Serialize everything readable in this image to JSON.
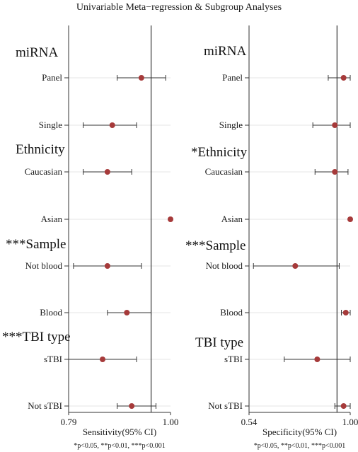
{
  "title": "Univariable Meta−regression & Subgroup Analyses",
  "footnote": "*p<0.05, **p<0.01, ***p<0.001",
  "colors": {
    "point": "#a63a3a",
    "line": "#333333",
    "grid": "#e6e6e6"
  },
  "chart_data": [
    {
      "type": "forest",
      "xlabel": "Sensitivity(95% CI)",
      "xlim": [
        0.79,
        1.0
      ],
      "ticks": [
        "0.79",
        "1.00"
      ],
      "reference": 0.96,
      "groups": [
        "miRNA",
        "Ethnicity",
        "***Sample",
        "***TBI type"
      ],
      "rows": [
        {
          "group": 0,
          "label": "Panel",
          "est": 0.94,
          "lo": 0.89,
          "hi": 0.99
        },
        {
          "group": 0,
          "label": "Single",
          "est": 0.88,
          "lo": 0.82,
          "hi": 0.93
        },
        {
          "group": 1,
          "label": "Caucasian",
          "est": 0.87,
          "lo": 0.82,
          "hi": 0.92
        },
        {
          "group": 1,
          "label": "Asian",
          "est": 1.0,
          "lo": 1.0,
          "hi": 1.0
        },
        {
          "group": 2,
          "label": "Not blood",
          "est": 0.87,
          "lo": 0.8,
          "hi": 0.94
        },
        {
          "group": 2,
          "label": "Blood",
          "est": 0.91,
          "lo": 0.87,
          "hi": 0.96
        },
        {
          "group": 3,
          "label": "sTBI",
          "est": 0.86,
          "lo": 0.79,
          "hi": 0.93
        },
        {
          "group": 3,
          "label": "Not sTBI",
          "est": 0.92,
          "lo": 0.89,
          "hi": 0.97
        }
      ]
    },
    {
      "type": "forest",
      "xlabel": "Specificity(95% CI)",
      "xlim": [
        0.54,
        1.0
      ],
      "ticks": [
        "0.54",
        "1.00"
      ],
      "reference": 0.94,
      "groups": [
        "miRNA",
        "*Ethnicity",
        "***Sample",
        "TBI type"
      ],
      "rows": [
        {
          "group": 0,
          "label": "Panel",
          "est": 0.97,
          "lo": 0.9,
          "hi": 1.0
        },
        {
          "group": 0,
          "label": "Single",
          "est": 0.93,
          "lo": 0.83,
          "hi": 1.0
        },
        {
          "group": 1,
          "label": "Caucasian",
          "est": 0.93,
          "lo": 0.84,
          "hi": 0.99
        },
        {
          "group": 1,
          "label": "Asian",
          "est": 1.0,
          "lo": 1.0,
          "hi": 1.0
        },
        {
          "group": 2,
          "label": "Not blood",
          "est": 0.75,
          "lo": 0.56,
          "hi": 0.95
        },
        {
          "group": 2,
          "label": "Blood",
          "est": 0.98,
          "lo": 0.96,
          "hi": 1.0
        },
        {
          "group": 3,
          "label": "sTBI",
          "est": 0.85,
          "lo": 0.7,
          "hi": 1.0
        },
        {
          "group": 3,
          "label": "Not sTBI",
          "est": 0.97,
          "lo": 0.93,
          "hi": 1.0
        }
      ]
    }
  ]
}
